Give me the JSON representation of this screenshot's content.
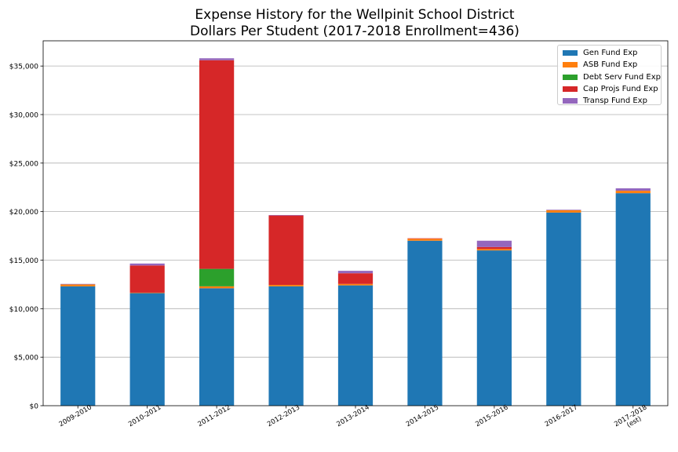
{
  "chart_data": {
    "type": "bar",
    "stacked": true,
    "title_lines": [
      "Expense History for the Wellpinit School District",
      "Dollars Per Student (2017-2018 Enrollment=436)"
    ],
    "categories": [
      "2009-2010",
      "2010-2011",
      "2011-2012",
      "2012-2013",
      "2013-2014",
      "2014-2015",
      "2015-2016",
      "2016-2017",
      "2017-2018\n(est)"
    ],
    "series": [
      {
        "name": "Gen Fund Exp",
        "color": "#1f77b4",
        "values": [
          12300,
          11600,
          12100,
          12300,
          12400,
          17000,
          16000,
          19900,
          21900
        ]
      },
      {
        "name": "ASB Fund Exp",
        "color": "#ff7f0e",
        "values": [
          200,
          50,
          200,
          150,
          150,
          200,
          150,
          250,
          250
        ]
      },
      {
        "name": "Debt Serv Fund Exp",
        "color": "#2ca02c",
        "values": [
          0,
          0,
          1800,
          0,
          0,
          0,
          0,
          0,
          0
        ]
      },
      {
        "name": "Cap Projs Fund Exp",
        "color": "#d62728",
        "values": [
          0,
          2800,
          21500,
          7150,
          1100,
          50,
          200,
          0,
          0
        ]
      },
      {
        "name": "Transp Fund Exp",
        "color": "#9467bd",
        "values": [
          50,
          200,
          200,
          50,
          250,
          0,
          650,
          50,
          250
        ]
      }
    ],
    "y_ticks": [
      "$0",
      "$5,000",
      "$10,000",
      "$15,000",
      "$20,000",
      "$25,000",
      "$30,000",
      "$35,000"
    ],
    "y_tick_values": [
      0,
      5000,
      10000,
      15000,
      20000,
      25000,
      30000,
      35000
    ],
    "ylim": [
      0,
      37600
    ],
    "grid": "horizontal",
    "legend_position": "top-right"
  }
}
